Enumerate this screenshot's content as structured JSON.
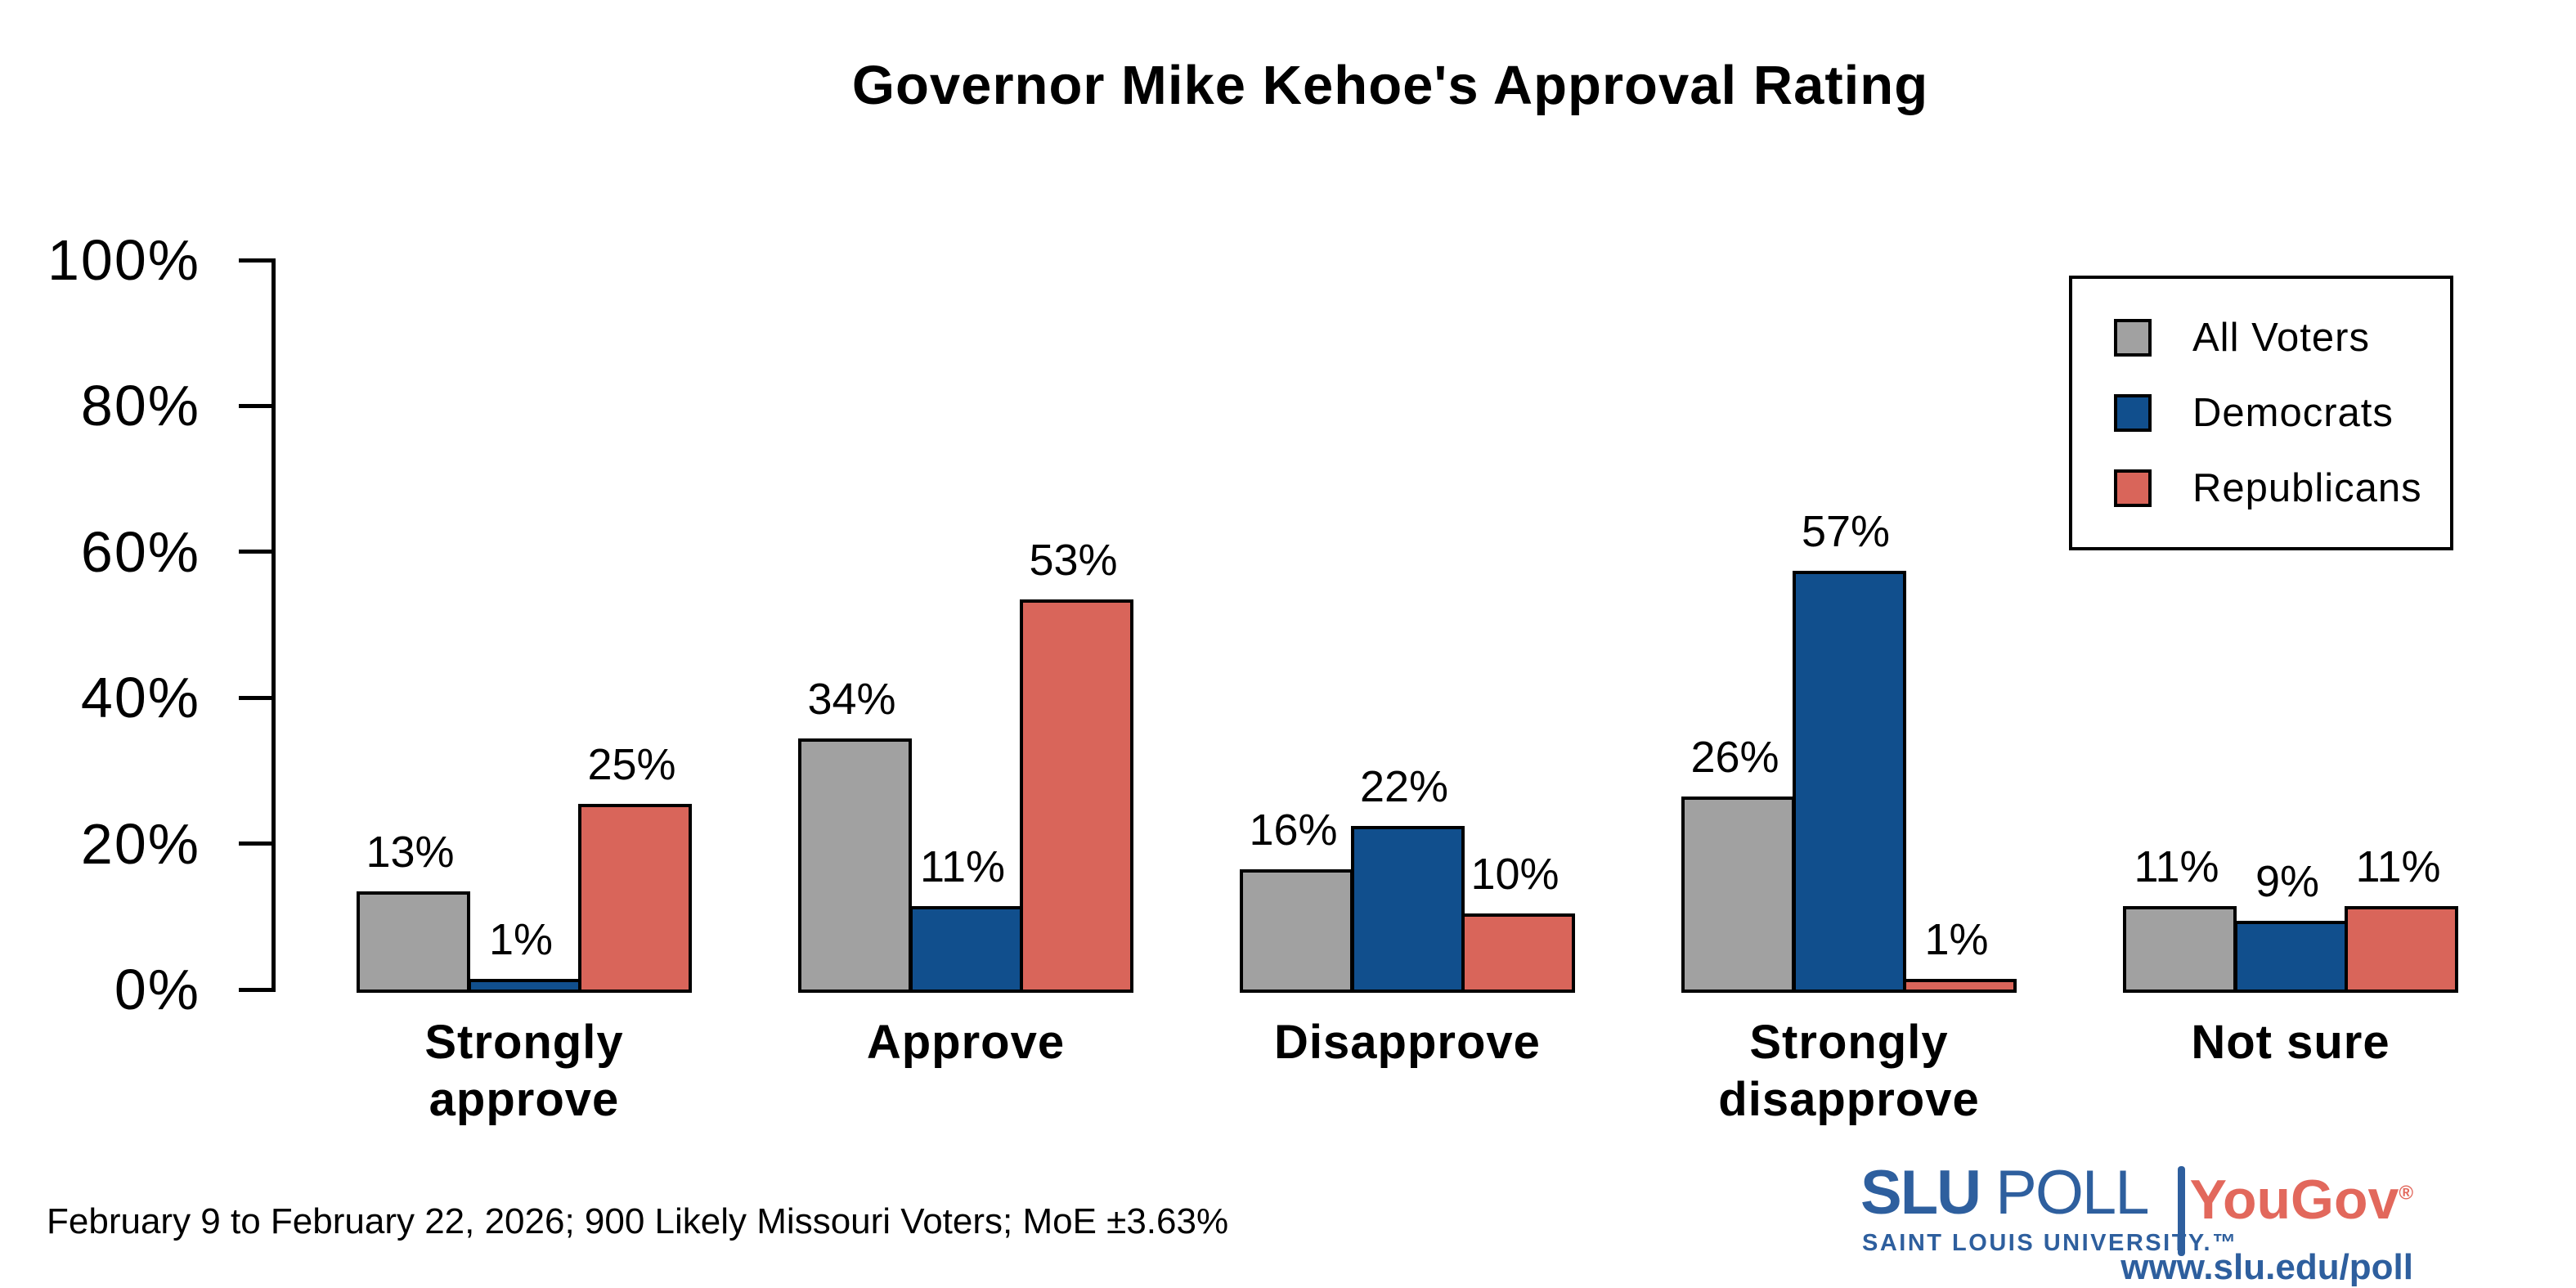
{
  "title": "Governor Mike Kehoe's Approval Rating",
  "chart_data": {
    "type": "bar",
    "categories": [
      "Strongly\napprove",
      "Approve",
      "Disapprove",
      "Strongly\ndisapprove",
      "Not sure"
    ],
    "series": [
      {
        "name": "All Voters",
        "color": "#a1a1a1",
        "values": [
          13,
          34,
          16,
          26,
          11
        ]
      },
      {
        "name": "Democrats",
        "color": "#114f8d",
        "values": [
          1,
          11,
          22,
          57,
          9
        ]
      },
      {
        "name": "Republicans",
        "color": "#d9655a",
        "values": [
          25,
          53,
          10,
          1,
          11
        ]
      }
    ],
    "value_label_suffix": "%",
    "ylabel": "",
    "ylim": [
      0,
      100
    ],
    "yticks": [
      0,
      20,
      40,
      60,
      80,
      100
    ],
    "ytick_labels": [
      "0%",
      "20%",
      "40%",
      "60%",
      "80%",
      "100%"
    ],
    "grid": false,
    "legend_position": "top-right",
    "bar_outline_color": "#000000"
  },
  "footer": {
    "note": "February 9 to February 22, 2026; 900 Likely Missouri Voters; MoE ±3.63%"
  },
  "branding": {
    "slu": "SLU",
    "poll": "POLL",
    "slu_sub": "SAINT LOUIS UNIVERSITY.™",
    "yougov": "YouGov",
    "registered": "®",
    "url": "www.slu.edu/poll",
    "slu_blue": "#2e5f9e",
    "yougov_red": "#e2685c"
  }
}
